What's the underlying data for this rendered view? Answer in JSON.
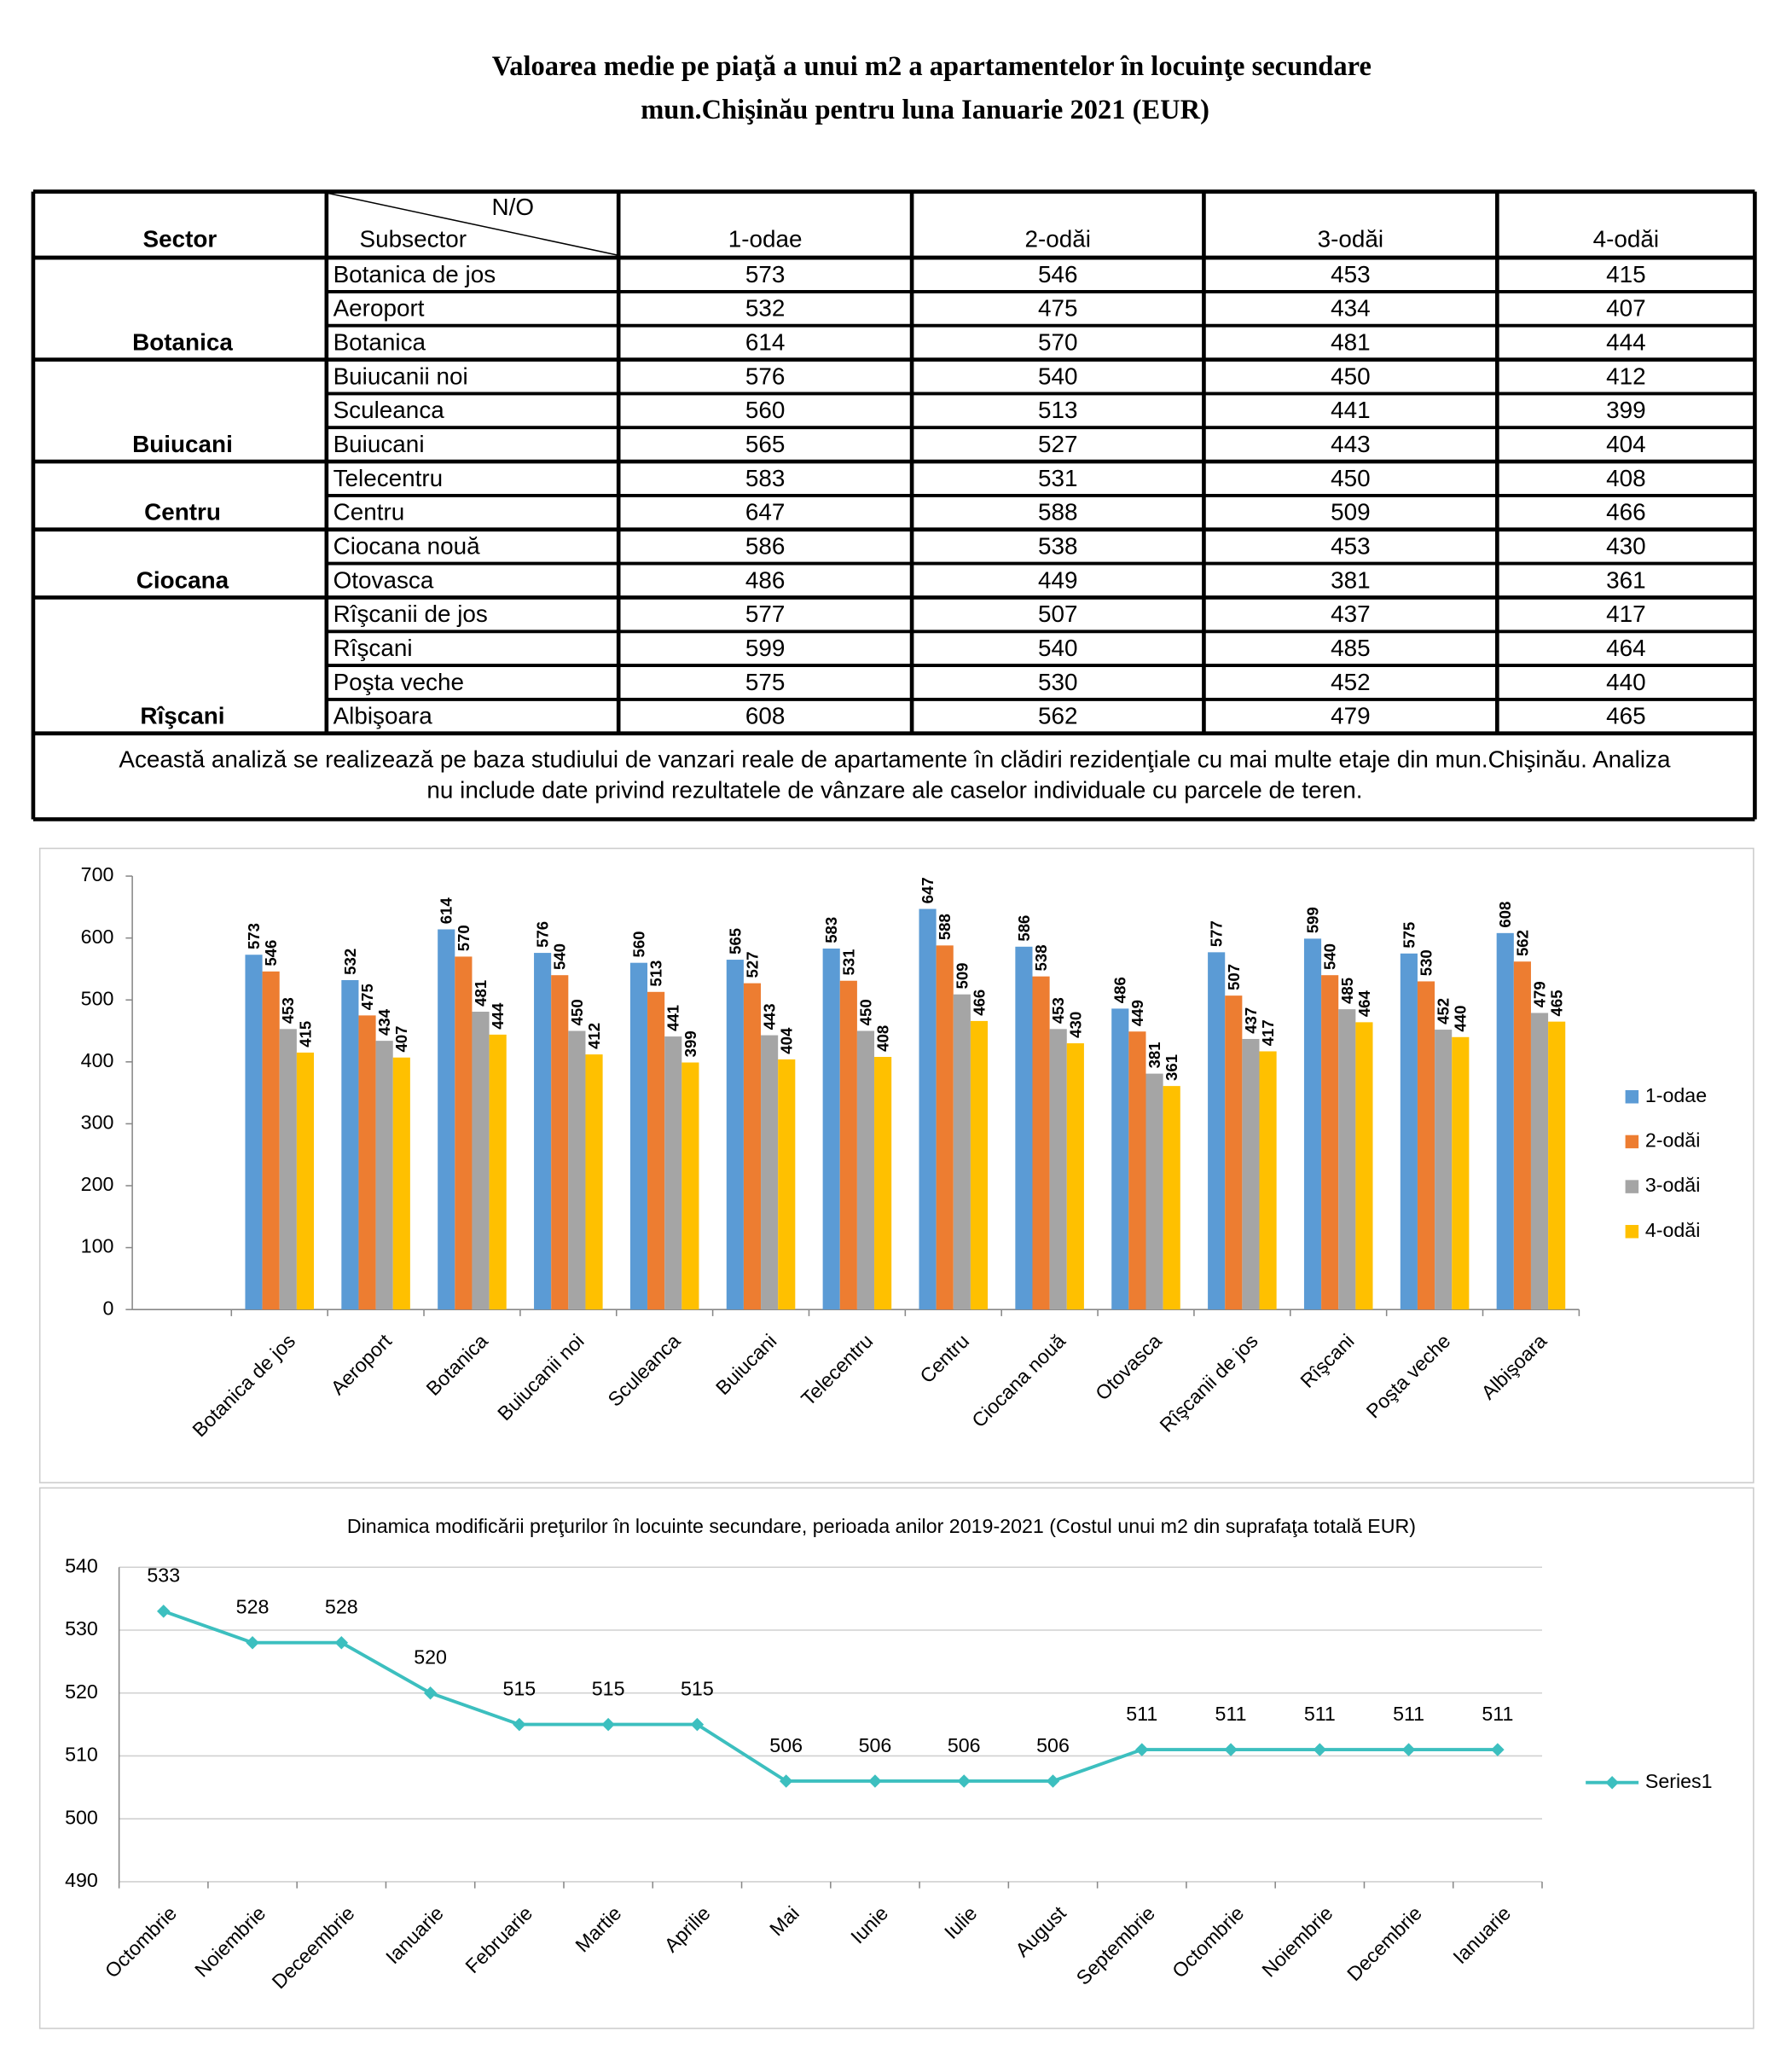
{
  "title": [
    "Valoarea medie pe piaţă a unui m2 a apartamentelor în locuinţe secundare",
    "mun.Chişinău  pentru luna Ianuarie 2021 (EUR)"
  ],
  "table": {
    "header": {
      "sector": "Sector",
      "no": "N/O",
      "subsector": "Subsector",
      "columns": [
        "1-odae",
        "2-odăi",
        "3-odăi",
        "4-odăi"
      ]
    },
    "groups": [
      {
        "sector": "Botanica",
        "rows": [
          {
            "subsector": "Botanica de jos",
            "values": [
              573,
              546,
              453,
              415
            ]
          },
          {
            "subsector": "Aeroport",
            "values": [
              532,
              475,
              434,
              407
            ]
          },
          {
            "subsector": "Botanica",
            "values": [
              614,
              570,
              481,
              444
            ]
          }
        ]
      },
      {
        "sector": "Buiucani",
        "rows": [
          {
            "subsector": "Buiucanii noi",
            "values": [
              576,
              540,
              450,
              412
            ]
          },
          {
            "subsector": "Sculeanca",
            "values": [
              560,
              513,
              441,
              399
            ]
          },
          {
            "subsector": "Buiucani",
            "values": [
              565,
              527,
              443,
              404
            ]
          }
        ]
      },
      {
        "sector": "Centru",
        "rows": [
          {
            "subsector": "Telecentru",
            "values": [
              583,
              531,
              450,
              408
            ]
          },
          {
            "subsector": "Centru",
            "values": [
              647,
              588,
              509,
              466
            ]
          }
        ]
      },
      {
        "sector": "Ciocana",
        "rows": [
          {
            "subsector": "Ciocana nouă",
            "values": [
              586,
              538,
              453,
              430
            ]
          },
          {
            "subsector": "Otovasca",
            "values": [
              486,
              449,
              381,
              361
            ]
          }
        ]
      },
      {
        "sector": "Rîşcani",
        "rows": [
          {
            "subsector": "Rîşcanii de jos",
            "values": [
              577,
              507,
              437,
              417
            ]
          },
          {
            "subsector": "Rîşcani",
            "values": [
              599,
              540,
              485,
              464
            ]
          },
          {
            "subsector": "Poşta veche",
            "values": [
              575,
              530,
              452,
              440
            ]
          },
          {
            "subsector": "Albişoara",
            "values": [
              608,
              562,
              479,
              465
            ]
          }
        ]
      }
    ],
    "note": [
      "Această analiză se realizează pe baza studiului de vanzari reale de apartamente în clădiri rezidenţiale cu mai multe etaje din mun.Chişinău. Analiza",
      "nu include date privind rezultatele de vânzare ale caselor individuale cu parcele de teren."
    ]
  },
  "chart_data": [
    {
      "type": "bar",
      "categories": [
        "Botanica de jos",
        "Aeroport",
        "Botanica",
        "Buiucanii noi",
        "Sculeanca",
        "Buiucani",
        "Telecentru",
        "Centru",
        "Ciocana nouă",
        "Otovasca",
        "Rîşcanii de jos",
        "Rîşcani",
        "Poşta veche",
        "Albişoara"
      ],
      "series": [
        {
          "name": "1-odae",
          "color": "#5b9bd5",
          "values": [
            573,
            532,
            614,
            576,
            560,
            565,
            583,
            647,
            586,
            486,
            577,
            599,
            575,
            608
          ]
        },
        {
          "name": "2-odăi",
          "color": "#ed7d31",
          "values": [
            546,
            475,
            570,
            540,
            513,
            527,
            531,
            588,
            538,
            449,
            507,
            540,
            530,
            562
          ]
        },
        {
          "name": "3-odăi",
          "color": "#a5a5a5",
          "values": [
            453,
            434,
            481,
            450,
            441,
            443,
            450,
            509,
            453,
            381,
            437,
            485,
            452,
            479
          ]
        },
        {
          "name": "4-odăi",
          "color": "#ffc000",
          "values": [
            415,
            407,
            444,
            412,
            399,
            404,
            408,
            466,
            430,
            361,
            417,
            464,
            440,
            465
          ]
        }
      ],
      "ylim": [
        0,
        700
      ],
      "yticks": [
        0,
        100,
        200,
        300,
        400,
        500,
        600,
        700
      ],
      "legend": "right"
    },
    {
      "type": "line",
      "title": "Dinamica modificării preţurilor în locuinte secundare, perioada anilor 2019-2021 (Costul unui m2 din suprafaţa totală EUR)",
      "categories": [
        "Octombrie",
        "Noiembrie",
        "Deceembrie",
        "Ianuarie",
        "Februarie",
        "Martie",
        "Aprilie",
        "Mai",
        "Iunie",
        "Iulie",
        "August",
        "Septembrie",
        "Octombrie",
        "Noiembrie",
        "Decembrie",
        "Ianuarie"
      ],
      "series": [
        {
          "name": "Series1",
          "color": "#3cbfbf",
          "values": [
            533,
            528,
            528,
            520,
            515,
            515,
            515,
            506,
            506,
            506,
            506,
            511,
            511,
            511,
            511,
            511
          ]
        }
      ],
      "ylim": [
        490,
        540
      ],
      "yticks": [
        490,
        500,
        510,
        520,
        530,
        540
      ],
      "grid": true,
      "legend": "right"
    }
  ]
}
